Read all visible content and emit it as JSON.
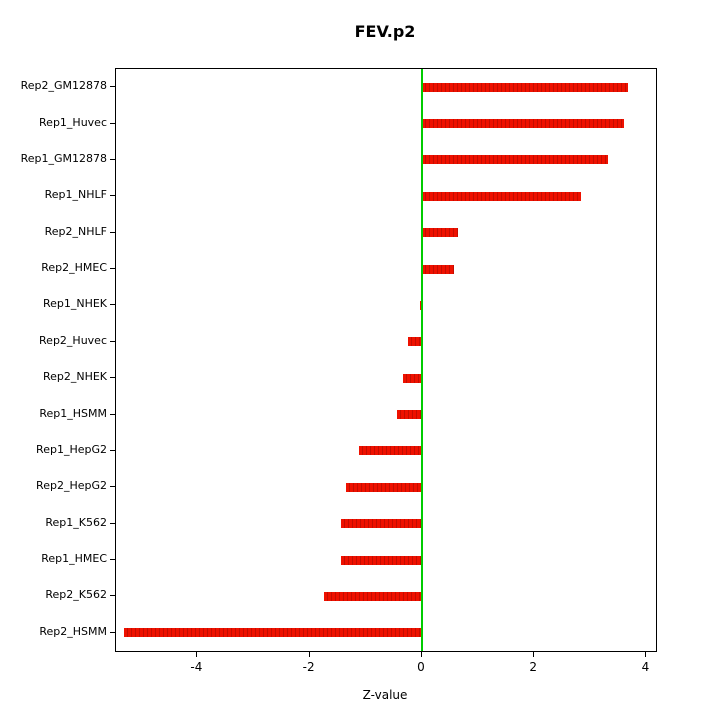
{
  "chart": {
    "title": "FEV.p2",
    "xlabel": "Z-value"
  },
  "chart_data": {
    "type": "bar",
    "orientation": "horizontal",
    "title": "FEV.p2",
    "xlabel": "Z-value",
    "ylabel": "",
    "categories": [
      "Rep2_GM12878",
      "Rep1_Huvec",
      "Rep1_GM12878",
      "Rep1_NHLF",
      "Rep2_NHLF",
      "Rep2_HMEC",
      "Rep1_NHEK",
      "Rep2_Huvec",
      "Rep2_NHEK",
      "Rep1_HSMM",
      "Rep1_HepG2",
      "Rep2_HepG2",
      "Rep1_K562",
      "Rep1_HMEC",
      "Rep2_K562",
      "Rep2_HSMM"
    ],
    "values": [
      3.67,
      3.6,
      3.32,
      2.83,
      0.65,
      0.57,
      -0.03,
      -0.25,
      -0.33,
      -0.45,
      -1.12,
      -1.35,
      -1.45,
      -1.45,
      -1.75,
      -5.3
    ],
    "xlim": [
      -5.45,
      4.17
    ],
    "xticks": [
      -4,
      -2,
      0,
      2,
      4
    ],
    "bar_color": "#ee1100",
    "bar_stripe_color": "#c40d00",
    "zero_line_color": "#00cc00",
    "axis_color": "#000000",
    "grid": false,
    "legend": false
  }
}
